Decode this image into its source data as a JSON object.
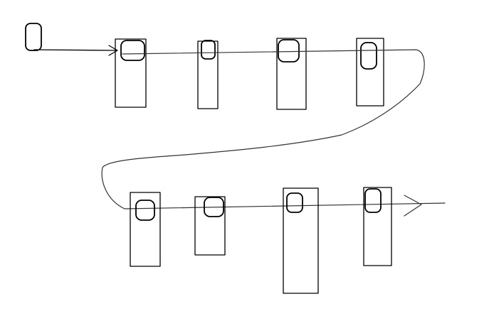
{
  "diagram": {
    "background": "#ffffff",
    "stroke_color": "#000000",
    "path_color": "#333333",
    "start_token_icon": "rounded-rectangle",
    "rows": [
      {
        "row": "top",
        "slot_count": 4,
        "flow": "left-to-right"
      },
      {
        "row": "bottom",
        "slot_count": 4,
        "flow": "left-to-right"
      }
    ]
  }
}
